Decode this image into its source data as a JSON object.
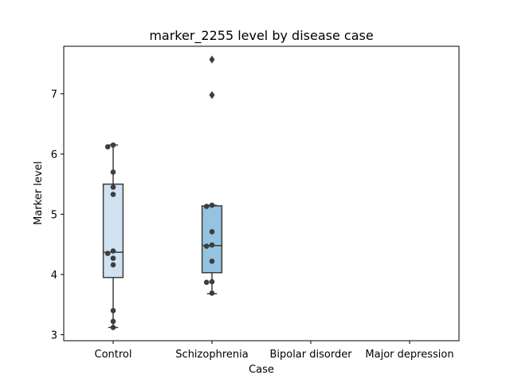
{
  "chart_data": {
    "type": "box",
    "title": "marker_2255 level by disease case",
    "xlabel": "Case",
    "ylabel": "Marker level",
    "categories": [
      "Control",
      "Schizophrenia",
      "Bipolar disorder",
      "Major depression"
    ],
    "ylim": [
      2.9,
      7.79
    ],
    "yticks": [
      3,
      4,
      5,
      6,
      7
    ],
    "grid": false,
    "legend": "none",
    "boxes": [
      {
        "category": "Control",
        "whisker_low": 3.12,
        "q1": 3.95,
        "median": 4.37,
        "q3": 5.5,
        "whisker_high": 6.15,
        "outliers": [],
        "color": "#d0e1f2"
      },
      {
        "category": "Schizophrenia",
        "whisker_low": 3.68,
        "q1": 4.03,
        "median": 4.48,
        "q3": 5.14,
        "whisker_high": 5.15,
        "outliers": [
          6.98,
          7.57
        ],
        "color": "#94c4df"
      }
    ],
    "points": [
      {
        "category": "Control",
        "values": [
          6.15,
          6.12,
          5.7,
          5.45,
          5.33,
          4.39,
          4.35,
          4.27,
          4.16,
          3.4,
          3.22,
          3.12
        ]
      },
      {
        "category": "Schizophrenia",
        "values": [
          5.15,
          5.13,
          4.71,
          4.49,
          4.47,
          4.22,
          3.88,
          3.87,
          3.69
        ]
      }
    ],
    "point_color": "#3d3d3d",
    "line_color": "#3d3d3d"
  }
}
